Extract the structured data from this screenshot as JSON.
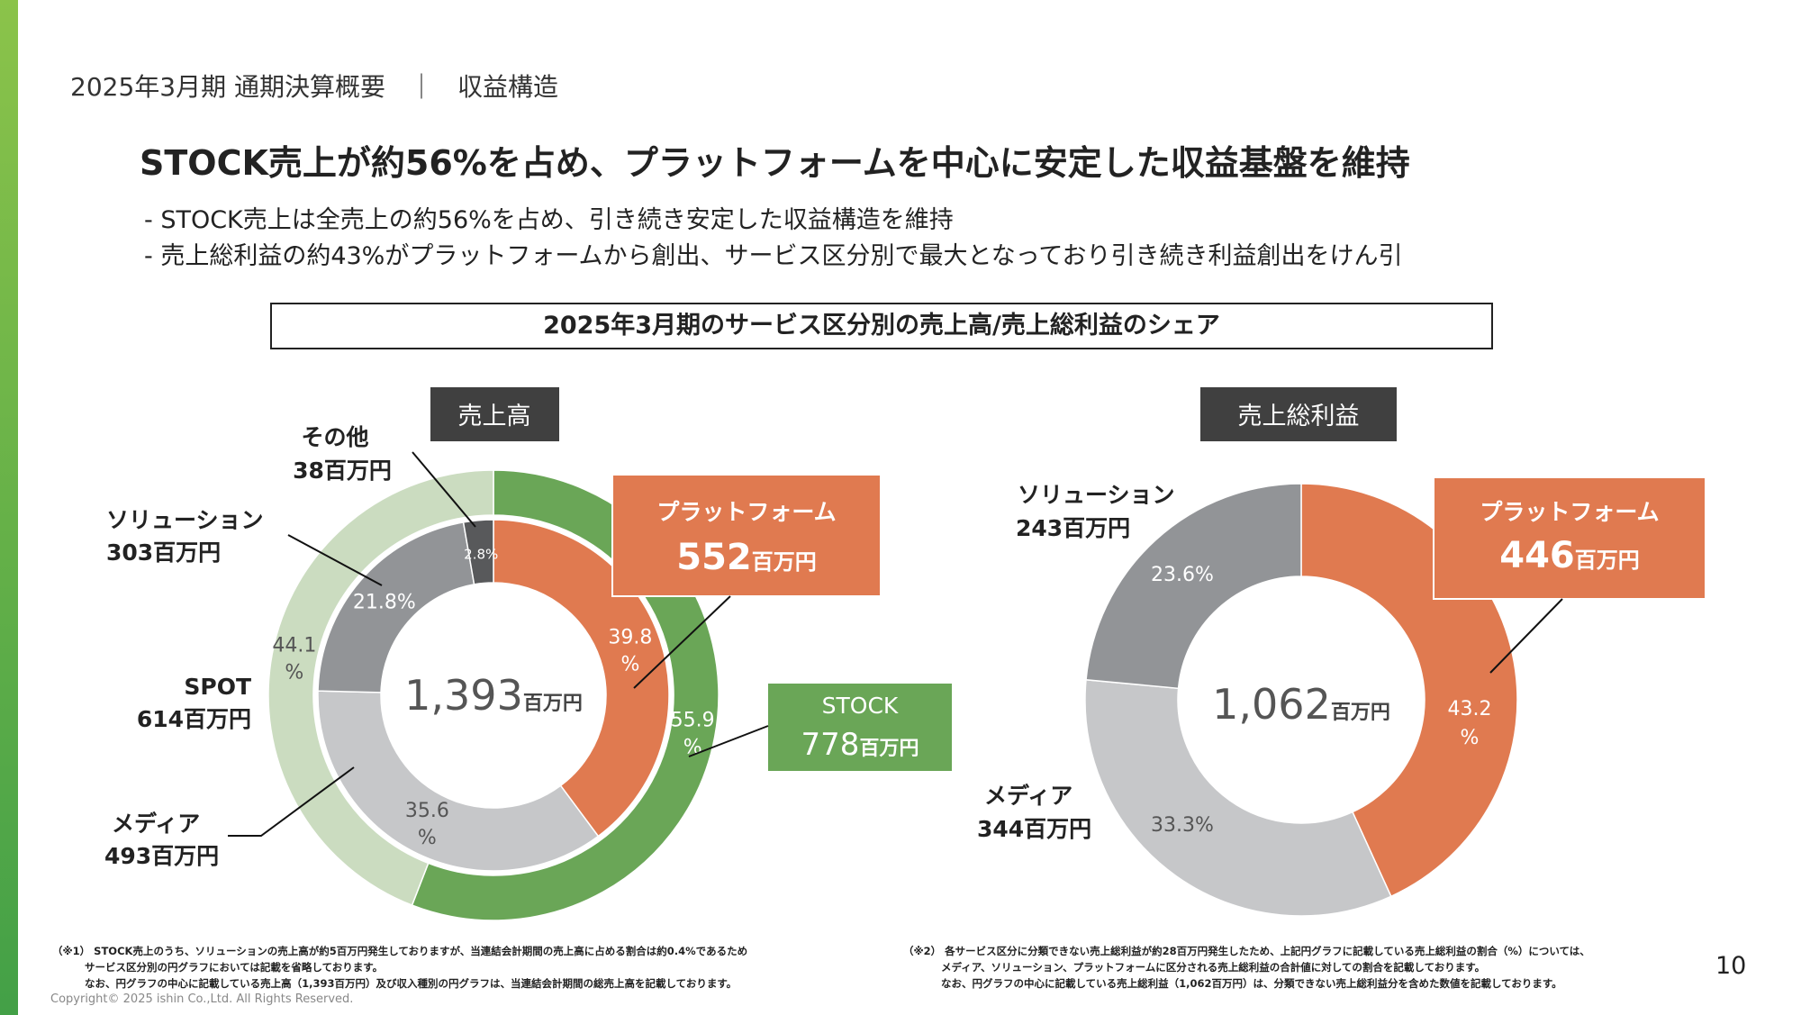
{
  "breadcrumb": {
    "section": "2025年3月期 通期決算概要",
    "separator": "｜",
    "topic": "収益構造"
  },
  "headline": "STOCK売上が約56%を占め、プラットフォームを中心に安定した収益基盤を維持",
  "bullets": [
    "- STOCK売上は全売上の約56%を占め、引き続き安定した収益構造を維持",
    "- 売上総利益の約43%がプラットフォームから創出、サービス区分別で最大となっており引き続き利益創出をけん引"
  ],
  "section_title": "2025年3月期のサービス区分別の売上高/売上総利益のシェア",
  "colors": {
    "platform": "#e07a50",
    "media": "#c6c7c9",
    "solution": "#929497",
    "other": "#58595b",
    "stock": "#6aa657",
    "spot": "#cbdcc0",
    "header_box": "#404040",
    "accent_top": "#8bc34a",
    "accent_bottom": "#43a047"
  },
  "chart_data": [
    {
      "type": "pie",
      "subtype": "donut",
      "title": "売上高",
      "center": {
        "value": "1,393",
        "unit": "百万円"
      },
      "inner_ring": [
        {
          "name": "プラットフォーム",
          "value": 552,
          "unit": "百万円",
          "pct": 39.8,
          "pct_lines": [
            "39.8",
            "%"
          ],
          "color": "#e07a50"
        },
        {
          "name": "メディア",
          "value": 493,
          "unit": "百万円",
          "pct": 35.6,
          "pct_lines": [
            "35.6",
            "%"
          ],
          "color": "#c6c7c9"
        },
        {
          "name": "ソリューション",
          "value": 303,
          "unit": "百万円",
          "pct": 21.8,
          "pct_lines": [
            "21.8%"
          ],
          "color": "#929497"
        },
        {
          "name": "その他",
          "value": 38,
          "unit": "百万円",
          "pct": 2.8,
          "pct_lines": [
            "2.8%"
          ],
          "color": "#58595b"
        }
      ],
      "outer_ring": [
        {
          "name": "STOCK",
          "value": 778,
          "unit": "百万円",
          "pct": 55.9,
          "pct_lines": [
            "55.9",
            "%"
          ],
          "color": "#6aa657"
        },
        {
          "name": "SPOT",
          "value": 614,
          "unit": "百万円",
          "pct": 44.1,
          "pct_lines": [
            "44.1",
            "%"
          ],
          "color": "#cbdcc0"
        }
      ],
      "labels": {
        "platform": {
          "name": "プラットフォーム",
          "value": "552",
          "unit": "百万円"
        },
        "stock": {
          "name": "STOCK",
          "value": "778",
          "unit": "百万円"
        },
        "other": {
          "name": "その他",
          "value": "38百万円"
        },
        "solution": {
          "name": "ソリューション",
          "value": "303百万円"
        },
        "spot": {
          "name": "SPOT",
          "value": "614百万円"
        },
        "media": {
          "name": "メディア",
          "value": "493百万円"
        }
      }
    },
    {
      "type": "pie",
      "subtype": "donut",
      "title": "売上総利益",
      "center": {
        "value": "1,062",
        "unit": "百万円"
      },
      "ring": [
        {
          "name": "プラットフォーム",
          "value": 446,
          "unit": "百万円",
          "pct": 43.2,
          "pct_lines": [
            "43.2",
            "%"
          ],
          "color": "#e07a50"
        },
        {
          "name": "メディア",
          "value": 344,
          "unit": "百万円",
          "pct": 33.3,
          "pct_lines": [
            "33.3%"
          ],
          "color": "#c6c7c9"
        },
        {
          "name": "ソリューション",
          "value": 243,
          "unit": "百万円",
          "pct": 23.6,
          "pct_lines": [
            "23.6%"
          ],
          "color": "#929497"
        }
      ],
      "labels": {
        "platform": {
          "name": "プラットフォーム",
          "value": "446",
          "unit": "百万円"
        },
        "solution": {
          "name": "ソリューション",
          "value": "243百万円"
        },
        "media": {
          "name": "メディア",
          "value": "344百万円"
        }
      }
    }
  ],
  "footnotes": {
    "note1": [
      "（※1） STOCK売上のうち、ソリューションの売上高が約5百万円発生しておりますが、当連結会計期間の売上高に占める割合は約0.4%であるため",
      "サービス区分別の円グラフにおいては記載を省略しております。",
      "なお、円グラフの中心に記載している売上高（1,393百万円）及び収入種別の円グラフは、当連結会計期間の総売上高を記載しております。"
    ],
    "note2": [
      "（※2） 各サービス区分に分類できない売上総利益が約28百万円発生したため、上記円グラフに記載している売上総利益の割合（%）については、",
      "メディア、ソリューション、プラットフォームに区分される売上総利益の合計値に対しての割合を記載しております。",
      "なお、円グラフの中心に記載している売上総利益（1,062百万円）は、分類できない売上総利益分を含めた数値を記載しております。"
    ]
  },
  "copyright": "Copyright© 2025 ishin Co.,Ltd. All Rights Reserved.",
  "page_number": "10"
}
